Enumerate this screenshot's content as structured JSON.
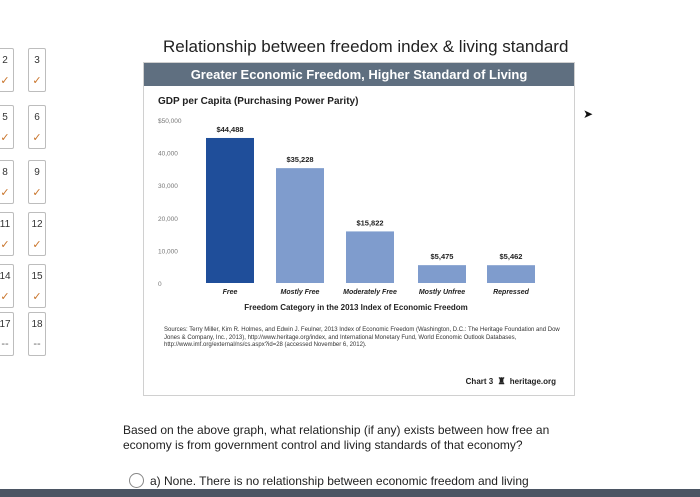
{
  "page_title": "Relationship between freedom index & living standard",
  "nav": {
    "questions": [
      {
        "num": "2",
        "mark": "✓"
      },
      {
        "num": "3",
        "mark": "✓"
      },
      {
        "num": "5",
        "mark": "✓"
      },
      {
        "num": "6",
        "mark": "✓"
      },
      {
        "num": "8",
        "mark": "✓"
      },
      {
        "num": "9",
        "mark": "✓"
      },
      {
        "num": "11",
        "mark": "✓"
      },
      {
        "num": "12",
        "mark": "✓"
      },
      {
        "num": "14",
        "mark": "✓"
      },
      {
        "num": "15",
        "mark": "✓"
      },
      {
        "num": "17",
        "mark": "--"
      },
      {
        "num": "18",
        "mark": "--"
      }
    ]
  },
  "chart_data": {
    "type": "bar",
    "title": "Greater Economic Freedom, Higher Standard of Living",
    "ylabel": "GDP per Capita (Purchasing Power Parity)",
    "xlabel": "Freedom Category in the 2013 Index of Economic Freedom",
    "categories": [
      "Free",
      "Mostly Free",
      "Moderately Free",
      "Mostly Unfree",
      "Repressed"
    ],
    "values": [
      44488,
      35228,
      15822,
      5475,
      5462
    ],
    "data_labels": [
      "$44,488",
      "$35,228",
      "$15,822",
      "$5,475",
      "$5,462"
    ],
    "yticks": [
      "0",
      "10,000",
      "20,000",
      "30,000",
      "40,000",
      "$50,000"
    ],
    "ylim": [
      0,
      50000
    ],
    "colors": [
      "#1f4e9a",
      "#7f9ccd",
      "#7f9ccd",
      "#7f9ccd",
      "#7f9ccd"
    ],
    "sources": "Sources: Terry Miller, Kim R. Holmes, and Edwin J. Feulner, 2013 Index of Economic Freedom (Washington, D.C.: The Heritage Foundation and Dow Jones & Company, Inc., 2013), http://www.heritage.org/index, and International Monetary Fund, World Economic Outlook Databases, http://www.imf.org/external/ns/cs.aspx?id=28 (accessed November 6, 2012).",
    "chart_number": "Chart 3",
    "brand": "heritage.org"
  },
  "question": {
    "text": "Based on the above graph, what relationship (if any) exists between how free an economy is from government control and living standards of that economy?",
    "option_a": "a) None.  There is no relationship between economic freedom and living"
  }
}
